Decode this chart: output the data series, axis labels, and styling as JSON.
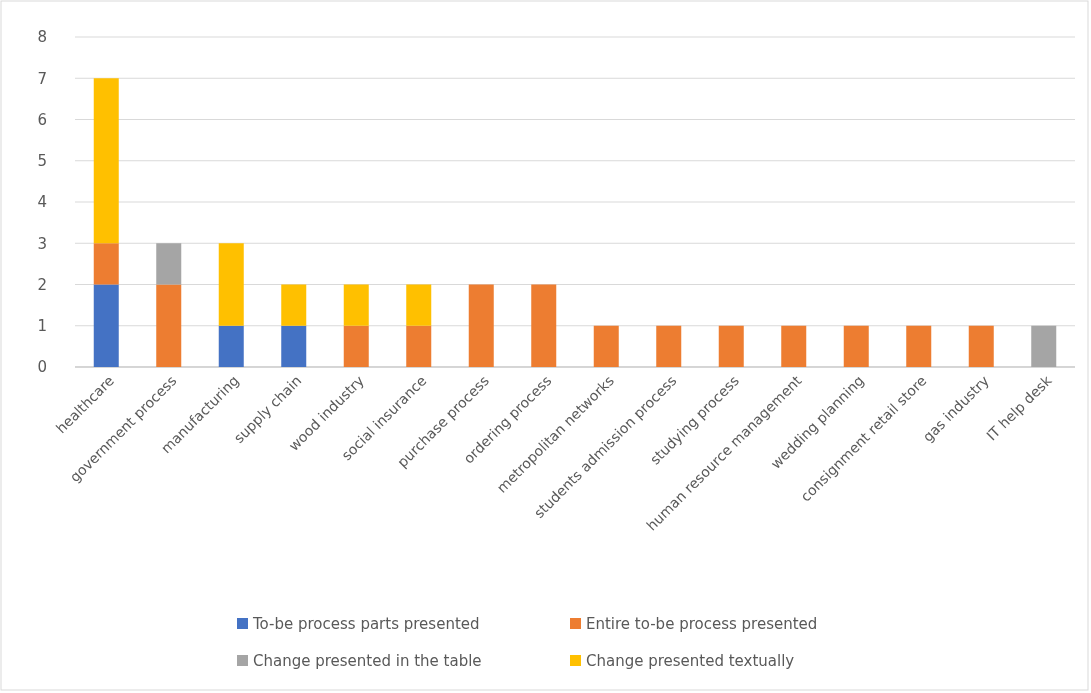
{
  "chart_data": {
    "type": "bar",
    "stacked": true,
    "categories": [
      "healthcare",
      "government process",
      "manufacturing",
      "supply chain",
      "wood industry",
      "social insurance",
      "purchase process",
      "ordering process",
      "metropolitan networks",
      "students admission process",
      "studying process",
      "human resource management",
      "wedding planning",
      "consignment retail store",
      "gas industry",
      "IT help desk"
    ],
    "series": [
      {
        "name": "To-be process parts presented",
        "color": "#4472c4",
        "values": [
          2,
          null,
          1,
          1,
          null,
          null,
          null,
          null,
          null,
          null,
          null,
          null,
          null,
          null,
          null,
          null
        ]
      },
      {
        "name": "Entire to-be process presented",
        "color": "#ed7d31",
        "values": [
          1,
          2,
          null,
          null,
          1,
          1,
          2,
          2,
          1,
          1,
          1,
          1,
          1,
          1,
          1,
          null
        ]
      },
      {
        "name": "Change presented in the table",
        "color": "#a5a5a5",
        "values": [
          null,
          1,
          null,
          null,
          null,
          null,
          null,
          null,
          null,
          null,
          null,
          null,
          null,
          null,
          null,
          1
        ]
      },
      {
        "name": "Change presented textually",
        "color": "#ffc000",
        "values": [
          4,
          null,
          2,
          1,
          1,
          1,
          null,
          null,
          null,
          null,
          null,
          null,
          null,
          null,
          null,
          null
        ]
      }
    ],
    "ylim": [
      0,
      8
    ],
    "yticks": [
      0,
      1,
      2,
      3,
      4,
      5,
      6,
      7,
      8
    ],
    "grid": "y",
    "legend": "bottom"
  }
}
